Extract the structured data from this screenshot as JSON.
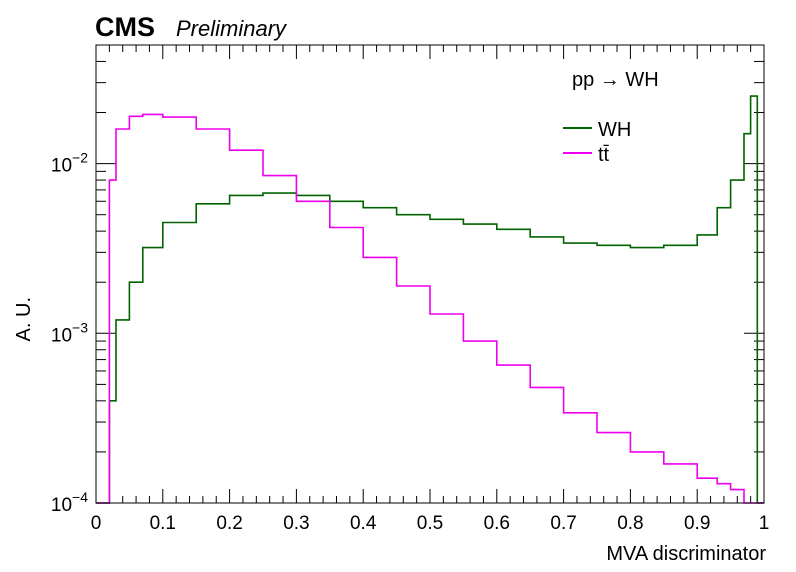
{
  "header": {
    "experiment": "CMS",
    "status": "Preliminary"
  },
  "process_label": "pp → WH",
  "chart_data": {
    "type": "line",
    "style": "step-histogram",
    "xlabel": "MVA discriminator",
    "ylabel": "A. U.",
    "xlim": [
      0,
      1
    ],
    "ylim": [
      0.0001,
      0.05
    ],
    "yscale": "log",
    "x_ticks": [
      "0",
      "0.1",
      "0.2",
      "0.3",
      "0.4",
      "0.5",
      "0.6",
      "0.7",
      "0.8",
      "0.9",
      "1"
    ],
    "y_tick_labels": [
      {
        "value": 0.0001,
        "base": "10",
        "exp": "−4"
      },
      {
        "value": 0.001,
        "base": "10",
        "exp": "−3"
      },
      {
        "value": 0.01,
        "base": "10",
        "exp": "−2"
      }
    ],
    "legend_position": "top-right",
    "x": [
      0.0,
      0.02,
      0.03,
      0.05,
      0.07,
      0.1,
      0.15,
      0.2,
      0.25,
      0.3,
      0.35,
      0.4,
      0.45,
      0.5,
      0.55,
      0.6,
      0.65,
      0.7,
      0.75,
      0.8,
      0.85,
      0.9,
      0.93,
      0.95,
      0.97,
      0.98,
      0.99
    ],
    "series": [
      {
        "name": "WH",
        "color": "#006400",
        "values": [
          0.0001,
          0.0004,
          0.0012,
          0.002,
          0.0032,
          0.0045,
          0.0058,
          0.0065,
          0.0067,
          0.0065,
          0.006,
          0.0055,
          0.005,
          0.0047,
          0.0044,
          0.0041,
          0.0037,
          0.0034,
          0.0033,
          0.0032,
          0.0033,
          0.0038,
          0.0055,
          0.008,
          0.015,
          0.025,
          0.0001
        ]
      },
      {
        "name": "tt̄",
        "color": "#ee00ee",
        "values": [
          0.0001,
          0.008,
          0.016,
          0.019,
          0.0195,
          0.0188,
          0.016,
          0.012,
          0.0085,
          0.006,
          0.0042,
          0.0028,
          0.0019,
          0.0013,
          0.0009,
          0.00065,
          0.00048,
          0.00034,
          0.00026,
          0.0002,
          0.00017,
          0.00014,
          0.00013,
          0.00012,
          0.0001,
          0.0001,
          0.0001
        ]
      }
    ]
  }
}
